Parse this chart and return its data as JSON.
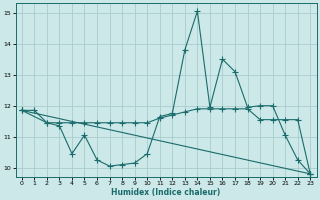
{
  "xlabel": "Humidex (Indice chaleur)",
  "background_color": "#cce8e8",
  "grid_color": "#aacccc",
  "line_color": "#1a6b6b",
  "xlim": [
    -0.5,
    23.5
  ],
  "ylim": [
    9.7,
    15.3
  ],
  "yticks": [
    10,
    11,
    12,
    13,
    14,
    15
  ],
  "xticks": [
    0,
    1,
    2,
    3,
    4,
    5,
    6,
    7,
    8,
    9,
    10,
    11,
    12,
    13,
    14,
    15,
    16,
    17,
    18,
    19,
    20,
    21,
    22,
    23
  ],
  "series1_x": [
    0,
    1,
    2,
    3,
    4,
    5,
    6,
    7,
    8,
    9,
    10,
    11,
    12,
    13,
    14,
    15,
    16,
    17,
    18,
    19,
    20,
    21,
    22,
    23
  ],
  "series1_y": [
    11.85,
    11.85,
    11.45,
    11.35,
    10.45,
    11.05,
    10.25,
    10.05,
    10.1,
    10.15,
    10.45,
    11.65,
    11.75,
    13.8,
    15.05,
    11.95,
    13.5,
    13.1,
    11.95,
    12.0,
    12.0,
    11.05,
    10.25,
    9.8
  ],
  "series2_x": [
    0,
    2,
    3,
    4,
    5,
    6,
    7,
    8,
    9,
    10,
    11,
    12,
    13,
    14,
    15,
    16,
    17,
    18,
    19,
    20,
    21,
    22,
    23
  ],
  "series2_y": [
    11.85,
    11.45,
    11.45,
    11.45,
    11.45,
    11.45,
    11.45,
    11.45,
    11.45,
    11.45,
    11.6,
    11.7,
    11.8,
    11.9,
    11.9,
    11.9,
    11.9,
    11.9,
    11.55,
    11.55,
    11.55,
    11.55,
    9.8
  ],
  "series3_x": [
    0,
    23
  ],
  "series3_y": [
    11.85,
    9.8
  ]
}
